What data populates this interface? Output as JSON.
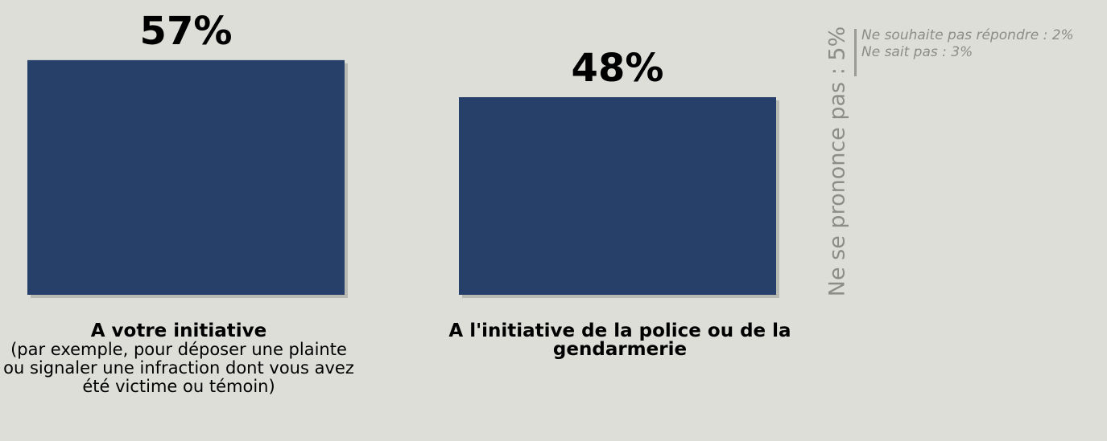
{
  "chart_data": {
    "type": "bar",
    "categories": [
      {
        "title": "A votre initiative",
        "subtitle": "(par exemple, pour déposer une plainte ou signaler une infraction dont vous avez été victime ou témoin)"
      },
      {
        "title": "A l'initiative de la police ou de la gendarmerie",
        "subtitle": ""
      }
    ],
    "values": [
      57,
      48
    ],
    "value_labels": [
      "57%",
      "48%"
    ],
    "unit": "%",
    "colors": {
      "bar": "#264069",
      "background": "#deded9",
      "muted_text": "#8c8c88"
    },
    "grid": false,
    "legend": "none"
  },
  "no_answer": {
    "total_label": "Ne se prononce pas : 5%",
    "details": [
      "Ne souhaite pas répondre : 2%",
      "Ne sait pas : 3%"
    ]
  }
}
